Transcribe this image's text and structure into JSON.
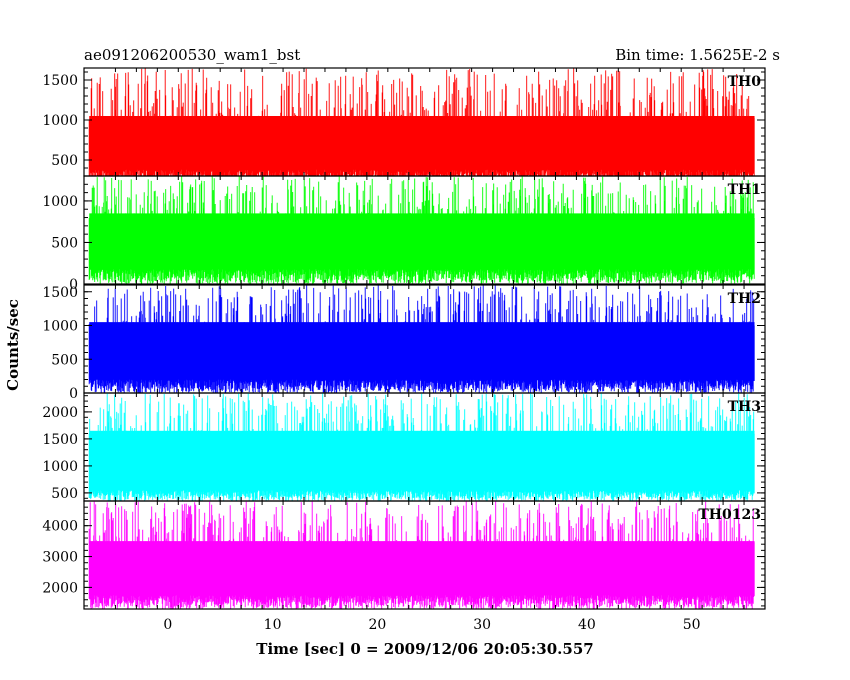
{
  "header": {
    "left_title": "ae091206200530_wam1_bst",
    "right_title": "Bin time: 1.5625E-2 s"
  },
  "chart_data": {
    "type": "line",
    "xlabel": "Time [sec] 0 = 2009/12/06 20:05:30.557",
    "ylabel": "Counts/sec",
    "xlim": [
      -8,
      57
    ],
    "x_range_data": [
      -7.5,
      56
    ],
    "x_ticks": [
      0,
      10,
      20,
      30,
      40,
      50
    ],
    "panels": [
      {
        "name": "TH0",
        "color": "#ff0000",
        "ylim": [
          300,
          1650
        ],
        "y_ticks": [
          500,
          1000,
          1500
        ],
        "band_low": [
          150,
          380
        ],
        "band_high": [
          1050,
          1650
        ],
        "core": [
          380,
          1050
        ]
      },
      {
        "name": "TH1",
        "color": "#00ff00",
        "ylim": [
          0,
          1300
        ],
        "y_ticks": [
          0,
          500,
          1000
        ],
        "band_low": [
          0,
          180
        ],
        "band_high": [
          850,
          1300
        ],
        "core": [
          180,
          850
        ]
      },
      {
        "name": "TH2",
        "color": "#0000ff",
        "ylim": [
          0,
          1600
        ],
        "y_ticks": [
          0,
          500,
          1000,
          1500
        ],
        "band_low": [
          0,
          200
        ],
        "band_high": [
          1050,
          1600
        ],
        "core": [
          200,
          1050
        ]
      },
      {
        "name": "TH3",
        "color": "#00ffff",
        "ylim": [
          350,
          2350
        ],
        "y_ticks": [
          500,
          1000,
          1500,
          2000
        ],
        "band_low": [
          350,
          550
        ],
        "band_high": [
          1650,
          2350
        ],
        "core": [
          550,
          1650
        ]
      },
      {
        "name": "TH0123",
        "color": "#ff00ff",
        "ylim": [
          1300,
          4800
        ],
        "y_ticks": [
          2000,
          3000,
          4000
        ],
        "band_low": [
          1300,
          1750
        ],
        "band_high": [
          3500,
          4800
        ],
        "core": [
          1750,
          3500
        ]
      }
    ]
  }
}
